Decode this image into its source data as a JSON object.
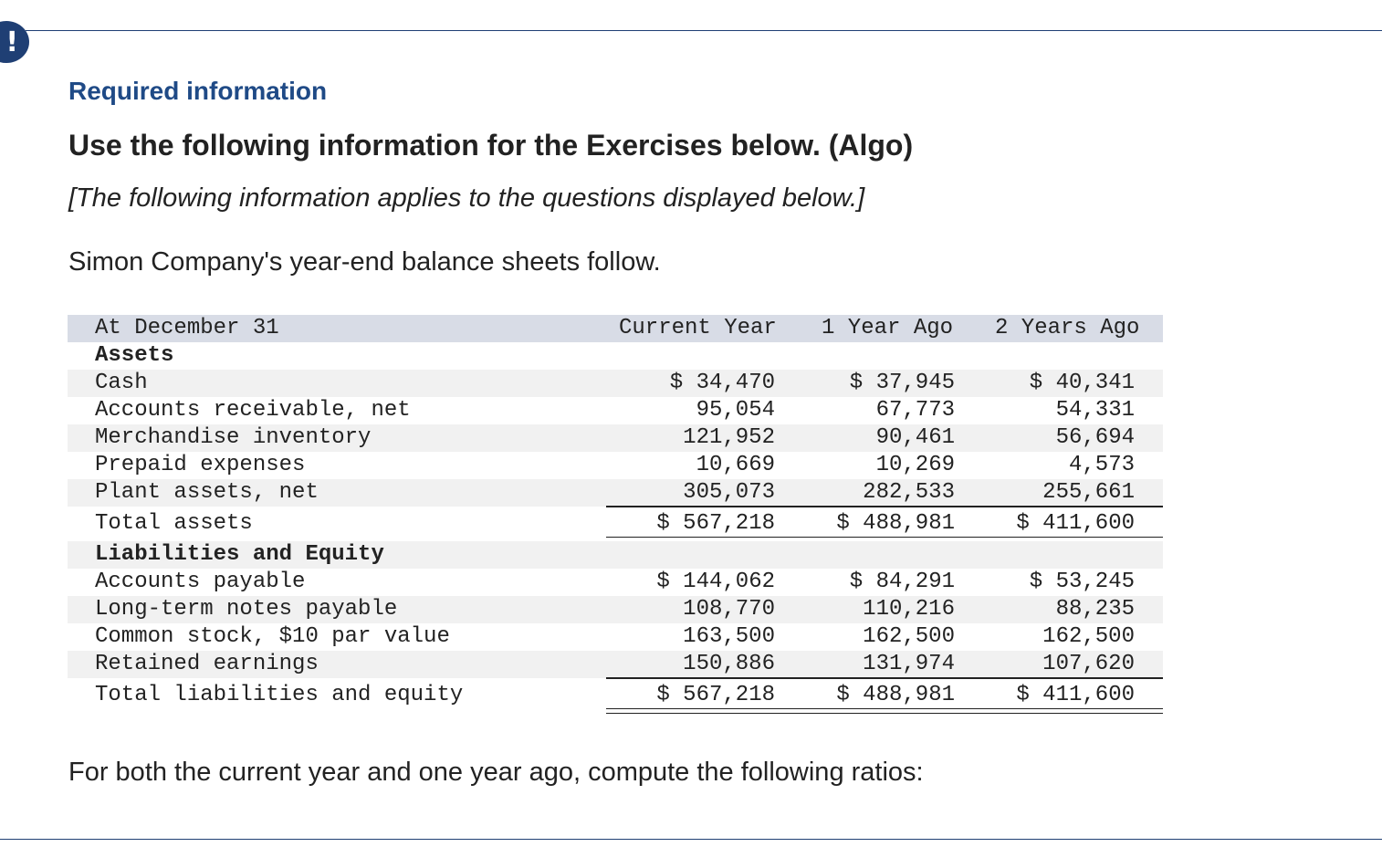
{
  "alert": {
    "icon": "exclamation-icon",
    "glyph": "!"
  },
  "header": {
    "required": "Required information",
    "title": "Use the following information for the Exercises below. (Algo)",
    "note": "[The following information applies to the questions displayed below.]"
  },
  "intro": "Simon Company's year-end balance sheets follow.",
  "outro": "For both the current year and one year ago, compute the following ratios:",
  "balance_sheet": {
    "columns": [
      "At December 31",
      "Current Year",
      "1 Year Ago",
      "2 Years Ago"
    ],
    "assets_heading": "Assets",
    "assets": [
      {
        "label": "Cash",
        "values": [
          "$ 34,470",
          "$ 37,945",
          "$ 40,341"
        ]
      },
      {
        "label": "Accounts receivable, net",
        "values": [
          "95,054",
          "67,773",
          "54,331"
        ]
      },
      {
        "label": "Merchandise inventory",
        "values": [
          "121,952",
          "90,461",
          "56,694"
        ]
      },
      {
        "label": "Prepaid expenses",
        "values": [
          "10,669",
          "10,269",
          "4,573"
        ]
      },
      {
        "label": "Plant assets, net",
        "values": [
          "305,073",
          "282,533",
          "255,661"
        ]
      }
    ],
    "total_assets": {
      "label": "Total assets",
      "values": [
        "$ 567,218",
        "$ 488,981",
        "$ 411,600"
      ]
    },
    "liabilities_heading": "Liabilities and Equity",
    "liabilities": [
      {
        "label": "Accounts payable",
        "values": [
          "$ 144,062",
          "$ 84,291",
          "$ 53,245"
        ]
      },
      {
        "label": "Long-term notes payable",
        "values": [
          "108,770",
          "110,216",
          "88,235"
        ]
      },
      {
        "label": "Common stock, $10 par value",
        "values": [
          "163,500",
          "162,500",
          "162,500"
        ]
      },
      {
        "label": "Retained earnings",
        "values": [
          "150,886",
          "131,974",
          "107,620"
        ]
      }
    ],
    "total_liabilities": {
      "label": "Total liabilities and equity",
      "values": [
        "$ 567,218",
        "$ 488,981",
        "$ 411,600"
      ]
    }
  }
}
